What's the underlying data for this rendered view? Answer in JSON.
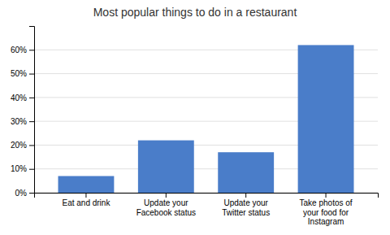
{
  "chart_data": {
    "type": "bar",
    "title": "Most popular things to do in a restaurant",
    "categories": [
      "Eat and drink",
      "Update your\nFacebook status",
      "Update your\nTwitter status",
      "Take photos of\nyour food for\nInstagram"
    ],
    "values": [
      0.07,
      0.22,
      0.17,
      0.62
    ],
    "color": "#4A7DC9",
    "ylim": [
      0,
      0.7
    ],
    "yticks": [
      {
        "value": 0.0,
        "label": "0%"
      },
      {
        "value": 0.1,
        "label": "10%"
      },
      {
        "value": 0.2,
        "label": "20%"
      },
      {
        "value": 0.3,
        "label": "30%"
      },
      {
        "value": 0.4,
        "label": "40%"
      },
      {
        "value": 0.5,
        "label": "50%"
      },
      {
        "value": 0.6,
        "label": "60%"
      }
    ],
    "grid": true
  }
}
